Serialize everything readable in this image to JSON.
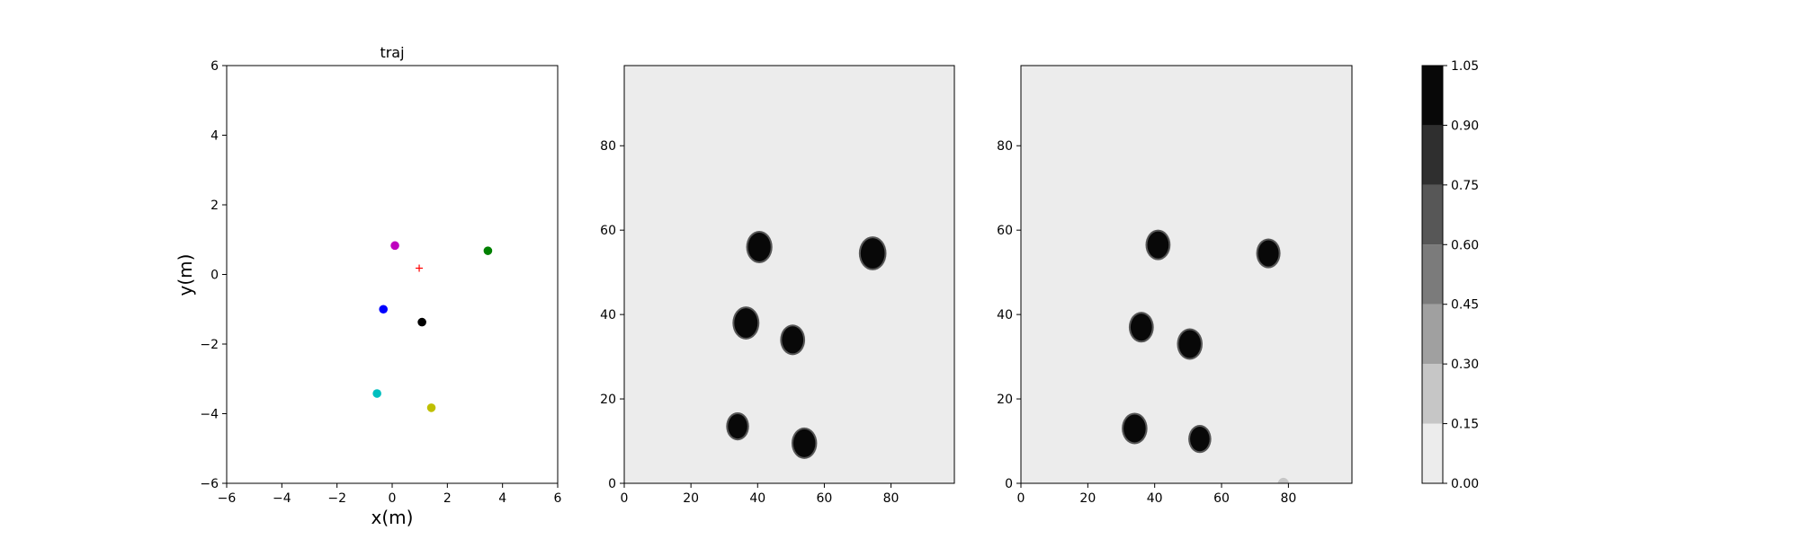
{
  "chart_data": [
    {
      "type": "scatter",
      "title": "traj",
      "xlabel": "x(m)",
      "ylabel": "y(m)",
      "xlim": [
        -6,
        6
      ],
      "ylim": [
        -6,
        6
      ],
      "xticks": [
        "−6",
        "−4",
        "−2",
        "0",
        "2",
        "4",
        "6"
      ],
      "yticks": [
        "−6",
        "−4",
        "−2",
        "0",
        "2",
        "4",
        "6"
      ],
      "grid": false,
      "points": [
        {
          "x": 0.1,
          "y": 0.83,
          "color": "#bf00bf",
          "marker": "circle"
        },
        {
          "x": 3.47,
          "y": 0.68,
          "color": "#008000",
          "marker": "circle"
        },
        {
          "x": -0.32,
          "y": -1.0,
          "color": "#0000ff",
          "marker": "circle"
        },
        {
          "x": 1.08,
          "y": -1.37,
          "color": "#000000",
          "marker": "circle"
        },
        {
          "x": -0.55,
          "y": -3.42,
          "color": "#00bfbf",
          "marker": "circle"
        },
        {
          "x": 1.42,
          "y": -3.83,
          "color": "#bfbf00",
          "marker": "circle"
        },
        {
          "x": 0.98,
          "y": 0.18,
          "color": "#ff0000",
          "marker": "plus"
        }
      ]
    },
    {
      "type": "heatmap",
      "xlim": [
        0,
        99
      ],
      "ylim": [
        0,
        99
      ],
      "xticks": [
        "0",
        "20",
        "40",
        "60",
        "80"
      ],
      "yticks": [
        "0",
        "20",
        "40",
        "60",
        "80"
      ],
      "background_value": 0.0,
      "blobs": [
        {
          "x": 40.5,
          "y": 56,
          "radius": 3.4,
          "value": 1.0
        },
        {
          "x": 74.5,
          "y": 54.5,
          "radius": 3.6,
          "value": 1.0
        },
        {
          "x": 36.5,
          "y": 38,
          "radius": 3.5,
          "value": 1.0
        },
        {
          "x": 50.5,
          "y": 34,
          "radius": 3.2,
          "value": 1.0
        },
        {
          "x": 34,
          "y": 13.5,
          "radius": 2.9,
          "value": 1.0
        },
        {
          "x": 54,
          "y": 9.5,
          "radius": 3.3,
          "value": 1.0
        }
      ]
    },
    {
      "type": "heatmap",
      "xlim": [
        0,
        99
      ],
      "ylim": [
        0,
        99
      ],
      "xticks": [
        "0",
        "20",
        "40",
        "60",
        "80"
      ],
      "yticks": [
        "0",
        "20",
        "40",
        "60",
        "80"
      ],
      "background_value": 0.0,
      "blobs": [
        {
          "x": 41,
          "y": 56.5,
          "radius": 3.2,
          "value": 1.0
        },
        {
          "x": 74,
          "y": 54.5,
          "radius": 3.1,
          "value": 1.0
        },
        {
          "x": 36,
          "y": 37,
          "radius": 3.2,
          "value": 1.0
        },
        {
          "x": 50.5,
          "y": 33,
          "radius": 3.3,
          "value": 1.0
        },
        {
          "x": 34,
          "y": 13,
          "radius": 3.3,
          "value": 1.0
        },
        {
          "x": 53.5,
          "y": 10.5,
          "radius": 2.9,
          "value": 1.0
        },
        {
          "x": 78.5,
          "y": -0.5,
          "radius": 1.8,
          "value": 0.2
        }
      ]
    }
  ],
  "colorbar": {
    "levels": [
      0.0,
      0.15,
      0.3,
      0.45,
      0.6,
      0.75,
      0.9,
      1.05
    ],
    "tick_labels": [
      "0.00",
      "0.15",
      "0.30",
      "0.45",
      "0.60",
      "0.75",
      "0.90",
      "1.05"
    ],
    "colors": [
      "#ececec",
      "#c6c6c6",
      "#a0a0a0",
      "#7b7b7b",
      "#575757",
      "#2f2f2f",
      "#080808"
    ]
  }
}
